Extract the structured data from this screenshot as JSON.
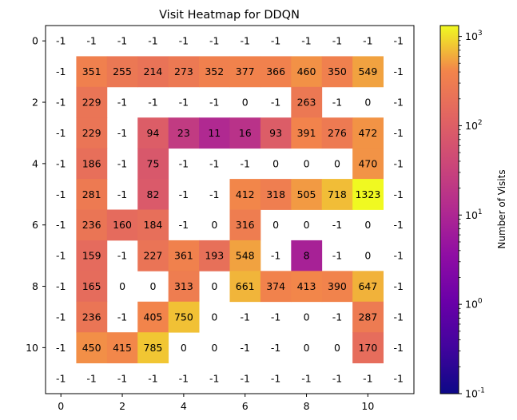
{
  "chart_data": {
    "type": "heatmap",
    "title": "Visit Heatmap for DDQN",
    "colorbar_label": "Number of Visits",
    "colorscale": "plasma",
    "color_scale_type": "log",
    "color_range": [
      0.1,
      1323
    ],
    "colorbar_ticks": [
      {
        "label": "10",
        "exp": "-1",
        "value": 0.1
      },
      {
        "label": "10",
        "exp": "0",
        "value": 1
      },
      {
        "label": "10",
        "exp": "1",
        "value": 10
      },
      {
        "label": "10",
        "exp": "2",
        "value": 100
      },
      {
        "label": "10",
        "exp": "3",
        "value": 1000
      }
    ],
    "x_ticks": [
      "0",
      "2",
      "4",
      "6",
      "8",
      "10"
    ],
    "y_ticks": [
      "0",
      "2",
      "4",
      "6",
      "8",
      "10"
    ],
    "masked_value": -1,
    "values": [
      [
        -1,
        -1,
        -1,
        -1,
        -1,
        -1,
        -1,
        -1,
        -1,
        -1,
        -1,
        -1
      ],
      [
        -1,
        351,
        255,
        214,
        273,
        352,
        377,
        366,
        460,
        350,
        549,
        -1
      ],
      [
        -1,
        229,
        -1,
        -1,
        -1,
        -1,
        0,
        -1,
        263,
        -1,
        0,
        -1
      ],
      [
        -1,
        229,
        -1,
        94,
        23,
        11,
        16,
        93,
        391,
        276,
        472,
        -1
      ],
      [
        -1,
        186,
        -1,
        75,
        -1,
        -1,
        -1,
        0,
        0,
        0,
        470,
        -1
      ],
      [
        -1,
        281,
        -1,
        82,
        -1,
        -1,
        412,
        318,
        505,
        718,
        1323,
        -1
      ],
      [
        -1,
        236,
        160,
        184,
        -1,
        0,
        316,
        0,
        0,
        -1,
        0,
        -1
      ],
      [
        -1,
        159,
        -1,
        227,
        361,
        193,
        548,
        -1,
        8,
        -1,
        0,
        -1
      ],
      [
        -1,
        165,
        0,
        0,
        313,
        0,
        661,
        374,
        413,
        390,
        647,
        -1
      ],
      [
        -1,
        236,
        -1,
        405,
        750,
        0,
        -1,
        -1,
        0,
        -1,
        287,
        -1
      ],
      [
        -1,
        450,
        415,
        785,
        0,
        0,
        -1,
        -1,
        0,
        0,
        170,
        -1
      ],
      [
        -1,
        -1,
        -1,
        -1,
        -1,
        -1,
        -1,
        -1,
        -1,
        -1,
        -1,
        -1
      ]
    ]
  }
}
